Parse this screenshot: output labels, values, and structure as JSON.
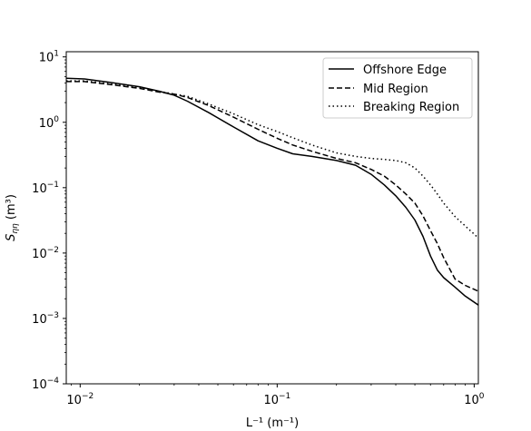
{
  "chart_data": {
    "type": "line",
    "title": "",
    "xlabel": "L⁻¹ (m⁻¹)",
    "ylabel_main": "S",
    "ylabel_sub": "ηη",
    "ylabel_suffix": " (m³)",
    "xscale": "log",
    "yscale": "log",
    "xlim": [
      0.0085,
      1.05
    ],
    "ylim": [
      0.0001,
      12
    ],
    "xticks": [
      {
        "value": 0.01,
        "base": "10",
        "exp": "−2"
      },
      {
        "value": 0.1,
        "base": "10",
        "exp": "−1"
      },
      {
        "value": 1,
        "base": "10",
        "exp": "0"
      }
    ],
    "yticks": [
      {
        "value": 0.0001,
        "base": "10",
        "exp": "−4"
      },
      {
        "value": 0.001,
        "base": "10",
        "exp": "−3"
      },
      {
        "value": 0.01,
        "base": "10",
        "exp": "−2"
      },
      {
        "value": 0.1,
        "base": "10",
        "exp": "−1"
      },
      {
        "value": 1,
        "base": "10",
        "exp": "0"
      },
      {
        "value": 10,
        "base": "10",
        "exp": "1"
      }
    ],
    "grid": false,
    "legend_position": "top-right",
    "series": [
      {
        "name": "Offshore Edge",
        "style": "solid",
        "color": "#000000",
        "x": [
          0.0085,
          0.0105,
          0.014,
          0.02,
          0.025,
          0.03,
          0.035,
          0.045,
          0.06,
          0.08,
          0.1,
          0.12,
          0.15,
          0.2,
          0.25,
          0.3,
          0.35,
          0.4,
          0.45,
          0.5,
          0.55,
          0.6,
          0.65,
          0.7,
          0.8,
          0.9,
          1.05
        ],
        "y": [
          4.7,
          4.6,
          4.1,
          3.5,
          3.0,
          2.6,
          2.1,
          1.4,
          0.85,
          0.52,
          0.4,
          0.33,
          0.3,
          0.26,
          0.22,
          0.16,
          0.11,
          0.075,
          0.05,
          0.032,
          0.018,
          0.009,
          0.0055,
          0.0042,
          0.003,
          0.0022,
          0.0016
        ]
      },
      {
        "name": "Mid Region",
        "style": "dashed",
        "color": "#000000",
        "x": [
          0.0085,
          0.0105,
          0.014,
          0.02,
          0.025,
          0.03,
          0.035,
          0.045,
          0.06,
          0.08,
          0.1,
          0.12,
          0.15,
          0.2,
          0.25,
          0.3,
          0.35,
          0.4,
          0.45,
          0.5,
          0.55,
          0.6,
          0.65,
          0.7,
          0.8,
          0.9,
          1.05
        ],
        "y": [
          4.2,
          4.2,
          3.8,
          3.3,
          2.9,
          2.7,
          2.4,
          1.8,
          1.2,
          0.78,
          0.57,
          0.45,
          0.36,
          0.28,
          0.24,
          0.19,
          0.15,
          0.11,
          0.08,
          0.058,
          0.037,
          0.022,
          0.014,
          0.0085,
          0.004,
          0.0032,
          0.0026
        ]
      },
      {
        "name": "Breaking Region",
        "style": "dotted",
        "color": "#000000",
        "x": [
          0.0085,
          0.0105,
          0.014,
          0.02,
          0.025,
          0.03,
          0.035,
          0.045,
          0.06,
          0.08,
          0.1,
          0.12,
          0.15,
          0.2,
          0.25,
          0.3,
          0.35,
          0.4,
          0.45,
          0.5,
          0.55,
          0.6,
          0.65,
          0.7,
          0.8,
          0.9,
          1.05
        ],
        "y": [
          4.3,
          4.3,
          3.9,
          3.4,
          3.0,
          2.7,
          2.5,
          1.9,
          1.35,
          0.92,
          0.72,
          0.58,
          0.45,
          0.34,
          0.3,
          0.28,
          0.27,
          0.26,
          0.24,
          0.2,
          0.15,
          0.11,
          0.08,
          0.058,
          0.036,
          0.026,
          0.017
        ]
      }
    ]
  }
}
